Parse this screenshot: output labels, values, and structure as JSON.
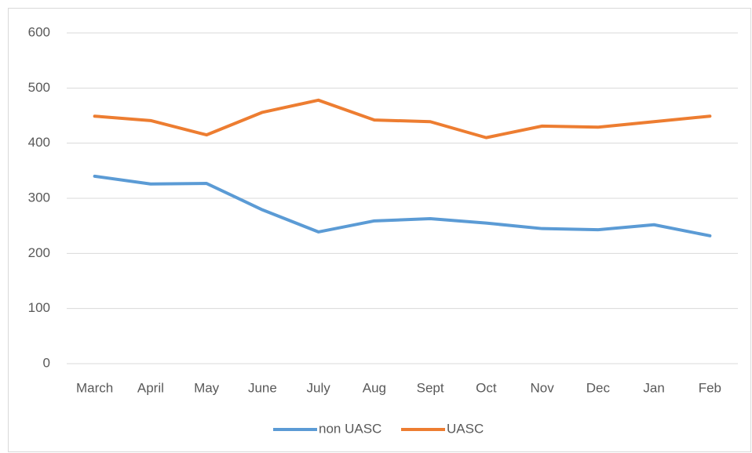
{
  "chart_data": {
    "type": "line",
    "categories": [
      "March",
      "April",
      "May",
      "June",
      "July",
      "Aug",
      "Sept",
      "Oct",
      "Nov",
      "Dec",
      "Jan",
      "Feb"
    ],
    "series": [
      {
        "name": "non UASC",
        "color": "#5b9bd5",
        "values": [
          340,
          326,
          327,
          279,
          239,
          259,
          263,
          255,
          245,
          243,
          252,
          232
        ]
      },
      {
        "name": "UASC",
        "color": "#ed7d31",
        "values": [
          449,
          441,
          415,
          456,
          478,
          442,
          439,
          410,
          431,
          429,
          439,
          449
        ]
      }
    ],
    "ylim": [
      0,
      600
    ],
    "yticks": [
      0,
      100,
      200,
      300,
      400,
      500,
      600
    ],
    "grid": true,
    "legend": "bottom"
  }
}
